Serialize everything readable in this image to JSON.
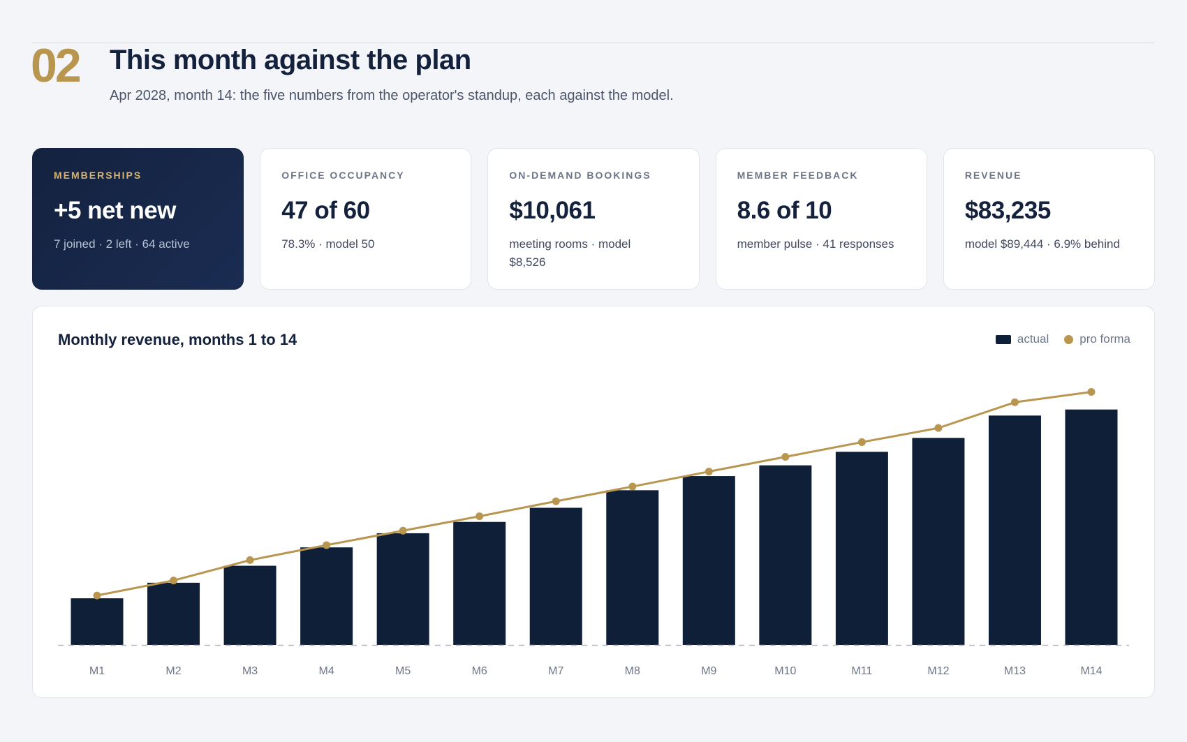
{
  "header": {
    "section_number": "02",
    "title": "This month against the plan",
    "subtitle": "Apr 2028, month 14: the five numbers from the operator's standup, each against the model."
  },
  "kpis": [
    {
      "label": "MEMBERSHIPS",
      "value": "+5 net new",
      "note": "7 joined · 2 left · 64 active"
    },
    {
      "label": "OFFICE OCCUPANCY",
      "value": "47 of 60",
      "note": "78.3% · model 50"
    },
    {
      "label": "ON-DEMAND BOOKINGS",
      "value": "$10,061",
      "note": "meeting rooms · model $8,526"
    },
    {
      "label": "MEMBER FEEDBACK",
      "value": "8.6 of 10",
      "note": "member pulse · 41 responses"
    },
    {
      "label": "REVENUE",
      "value": "$83,235",
      "note": "model $89,444 · 6.9% behind"
    }
  ],
  "colors": {
    "actual": "#0f1f38",
    "pro_forma": "#b9964f",
    "baseline": "#b4b9c4",
    "tick_label": "#6c7588"
  },
  "chart_data": {
    "type": "bar",
    "title": "Monthly revenue, months 1 to 14",
    "legend": {
      "position": "top-right",
      "actual_label": "actual",
      "pro_forma_label": "pro forma"
    },
    "categories": [
      "M1",
      "M2",
      "M3",
      "M4",
      "M5",
      "M6",
      "M7",
      "M8",
      "M9",
      "M10",
      "M11",
      "M12",
      "M13",
      "M14"
    ],
    "series": [
      {
        "name": "actual",
        "type": "bar",
        "values": [
          16500,
          22000,
          28000,
          34500,
          39500,
          43500,
          48500,
          54700,
          59700,
          63500,
          68300,
          73200,
          81100,
          83235
        ]
      },
      {
        "name": "pro forma",
        "type": "line",
        "values": [
          17500,
          22800,
          30000,
          35300,
          40400,
          45500,
          50800,
          56000,
          61300,
          66500,
          71700,
          76700,
          85800,
          89444
        ]
      }
    ],
    "ylim": [
      0,
      95000
    ],
    "grid": false
  }
}
